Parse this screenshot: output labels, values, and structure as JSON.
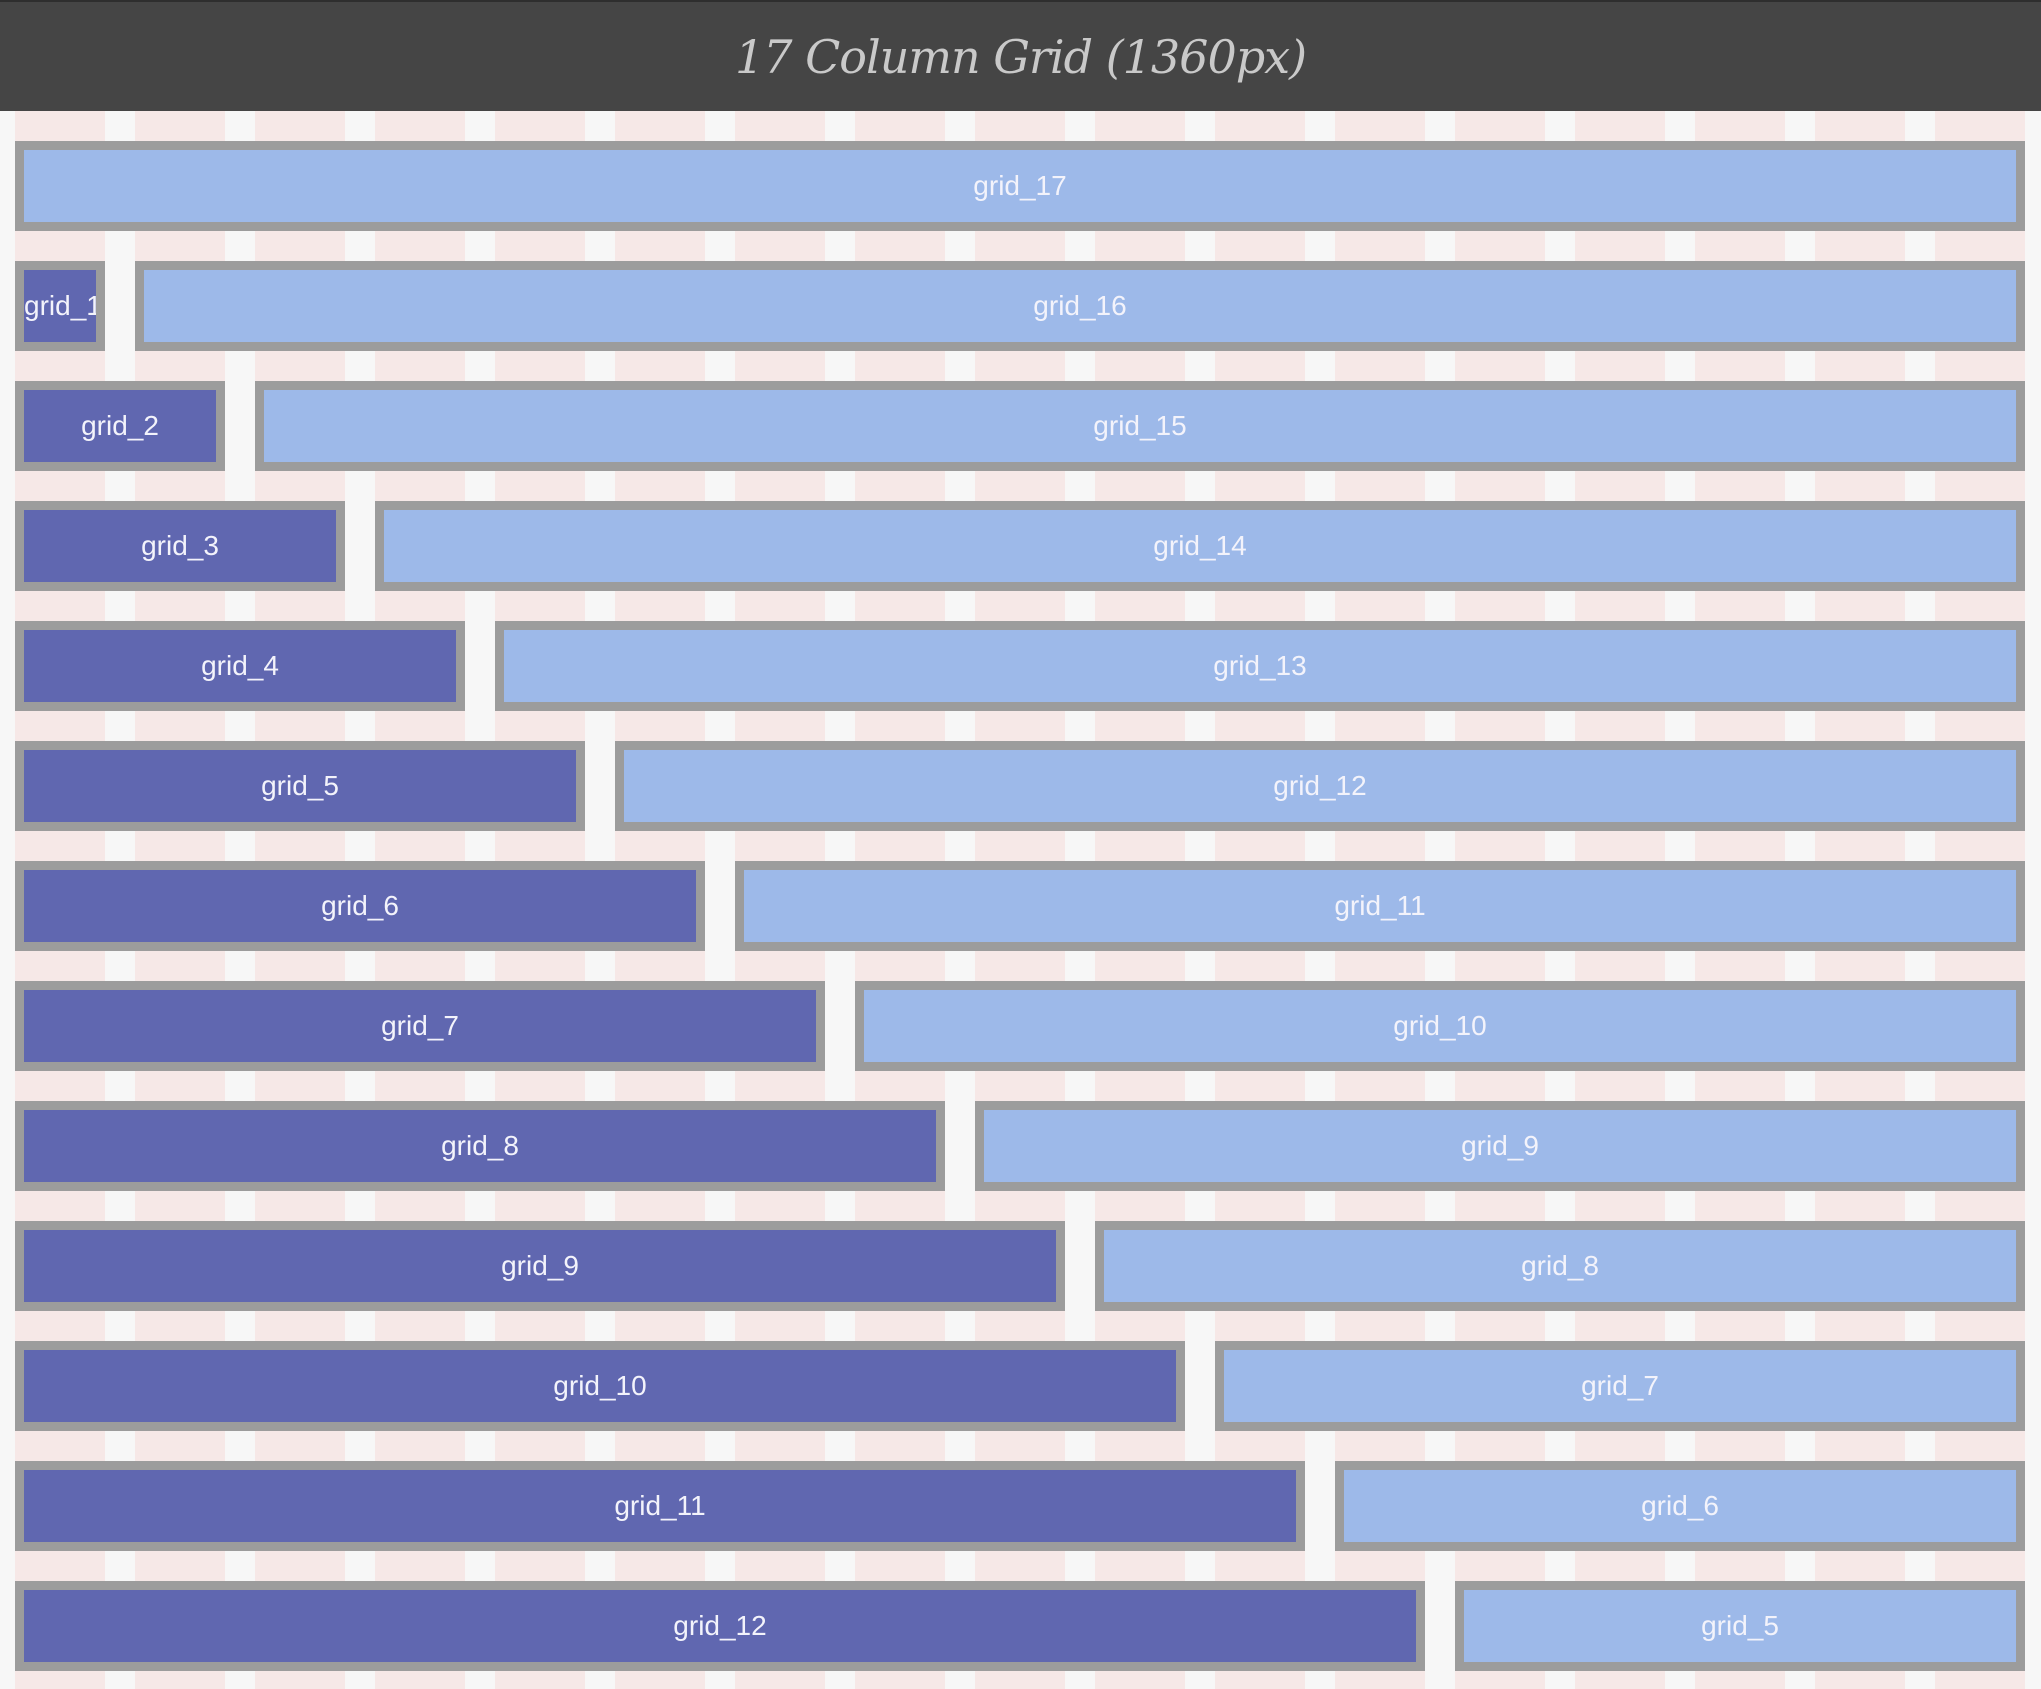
{
  "header": {
    "title": "17 Column Grid (1360px)"
  },
  "grid": {
    "columns": 17,
    "colors": {
      "header_bg": "#454545",
      "column_stripe": "#f6e8e7",
      "gutter": "#f7f7f7",
      "left_box": "#6067b0",
      "right_box": "#9db9e9",
      "border": "#9c9c9c"
    },
    "rows": [
      {
        "left": null,
        "right": "grid_17"
      },
      {
        "left": "grid_1",
        "right": "grid_16"
      },
      {
        "left": "grid_2",
        "right": "grid_15"
      },
      {
        "left": "grid_3",
        "right": "grid_14"
      },
      {
        "left": "grid_4",
        "right": "grid_13"
      },
      {
        "left": "grid_5",
        "right": "grid_12"
      },
      {
        "left": "grid_6",
        "right": "grid_11"
      },
      {
        "left": "grid_7",
        "right": "grid_10"
      },
      {
        "left": "grid_8",
        "right": "grid_9"
      },
      {
        "left": "grid_9",
        "right": "grid_8"
      },
      {
        "left": "grid_10",
        "right": "grid_7"
      },
      {
        "left": "grid_11",
        "right": "grid_6"
      },
      {
        "left": "grid_12",
        "right": "grid_5"
      }
    ]
  }
}
